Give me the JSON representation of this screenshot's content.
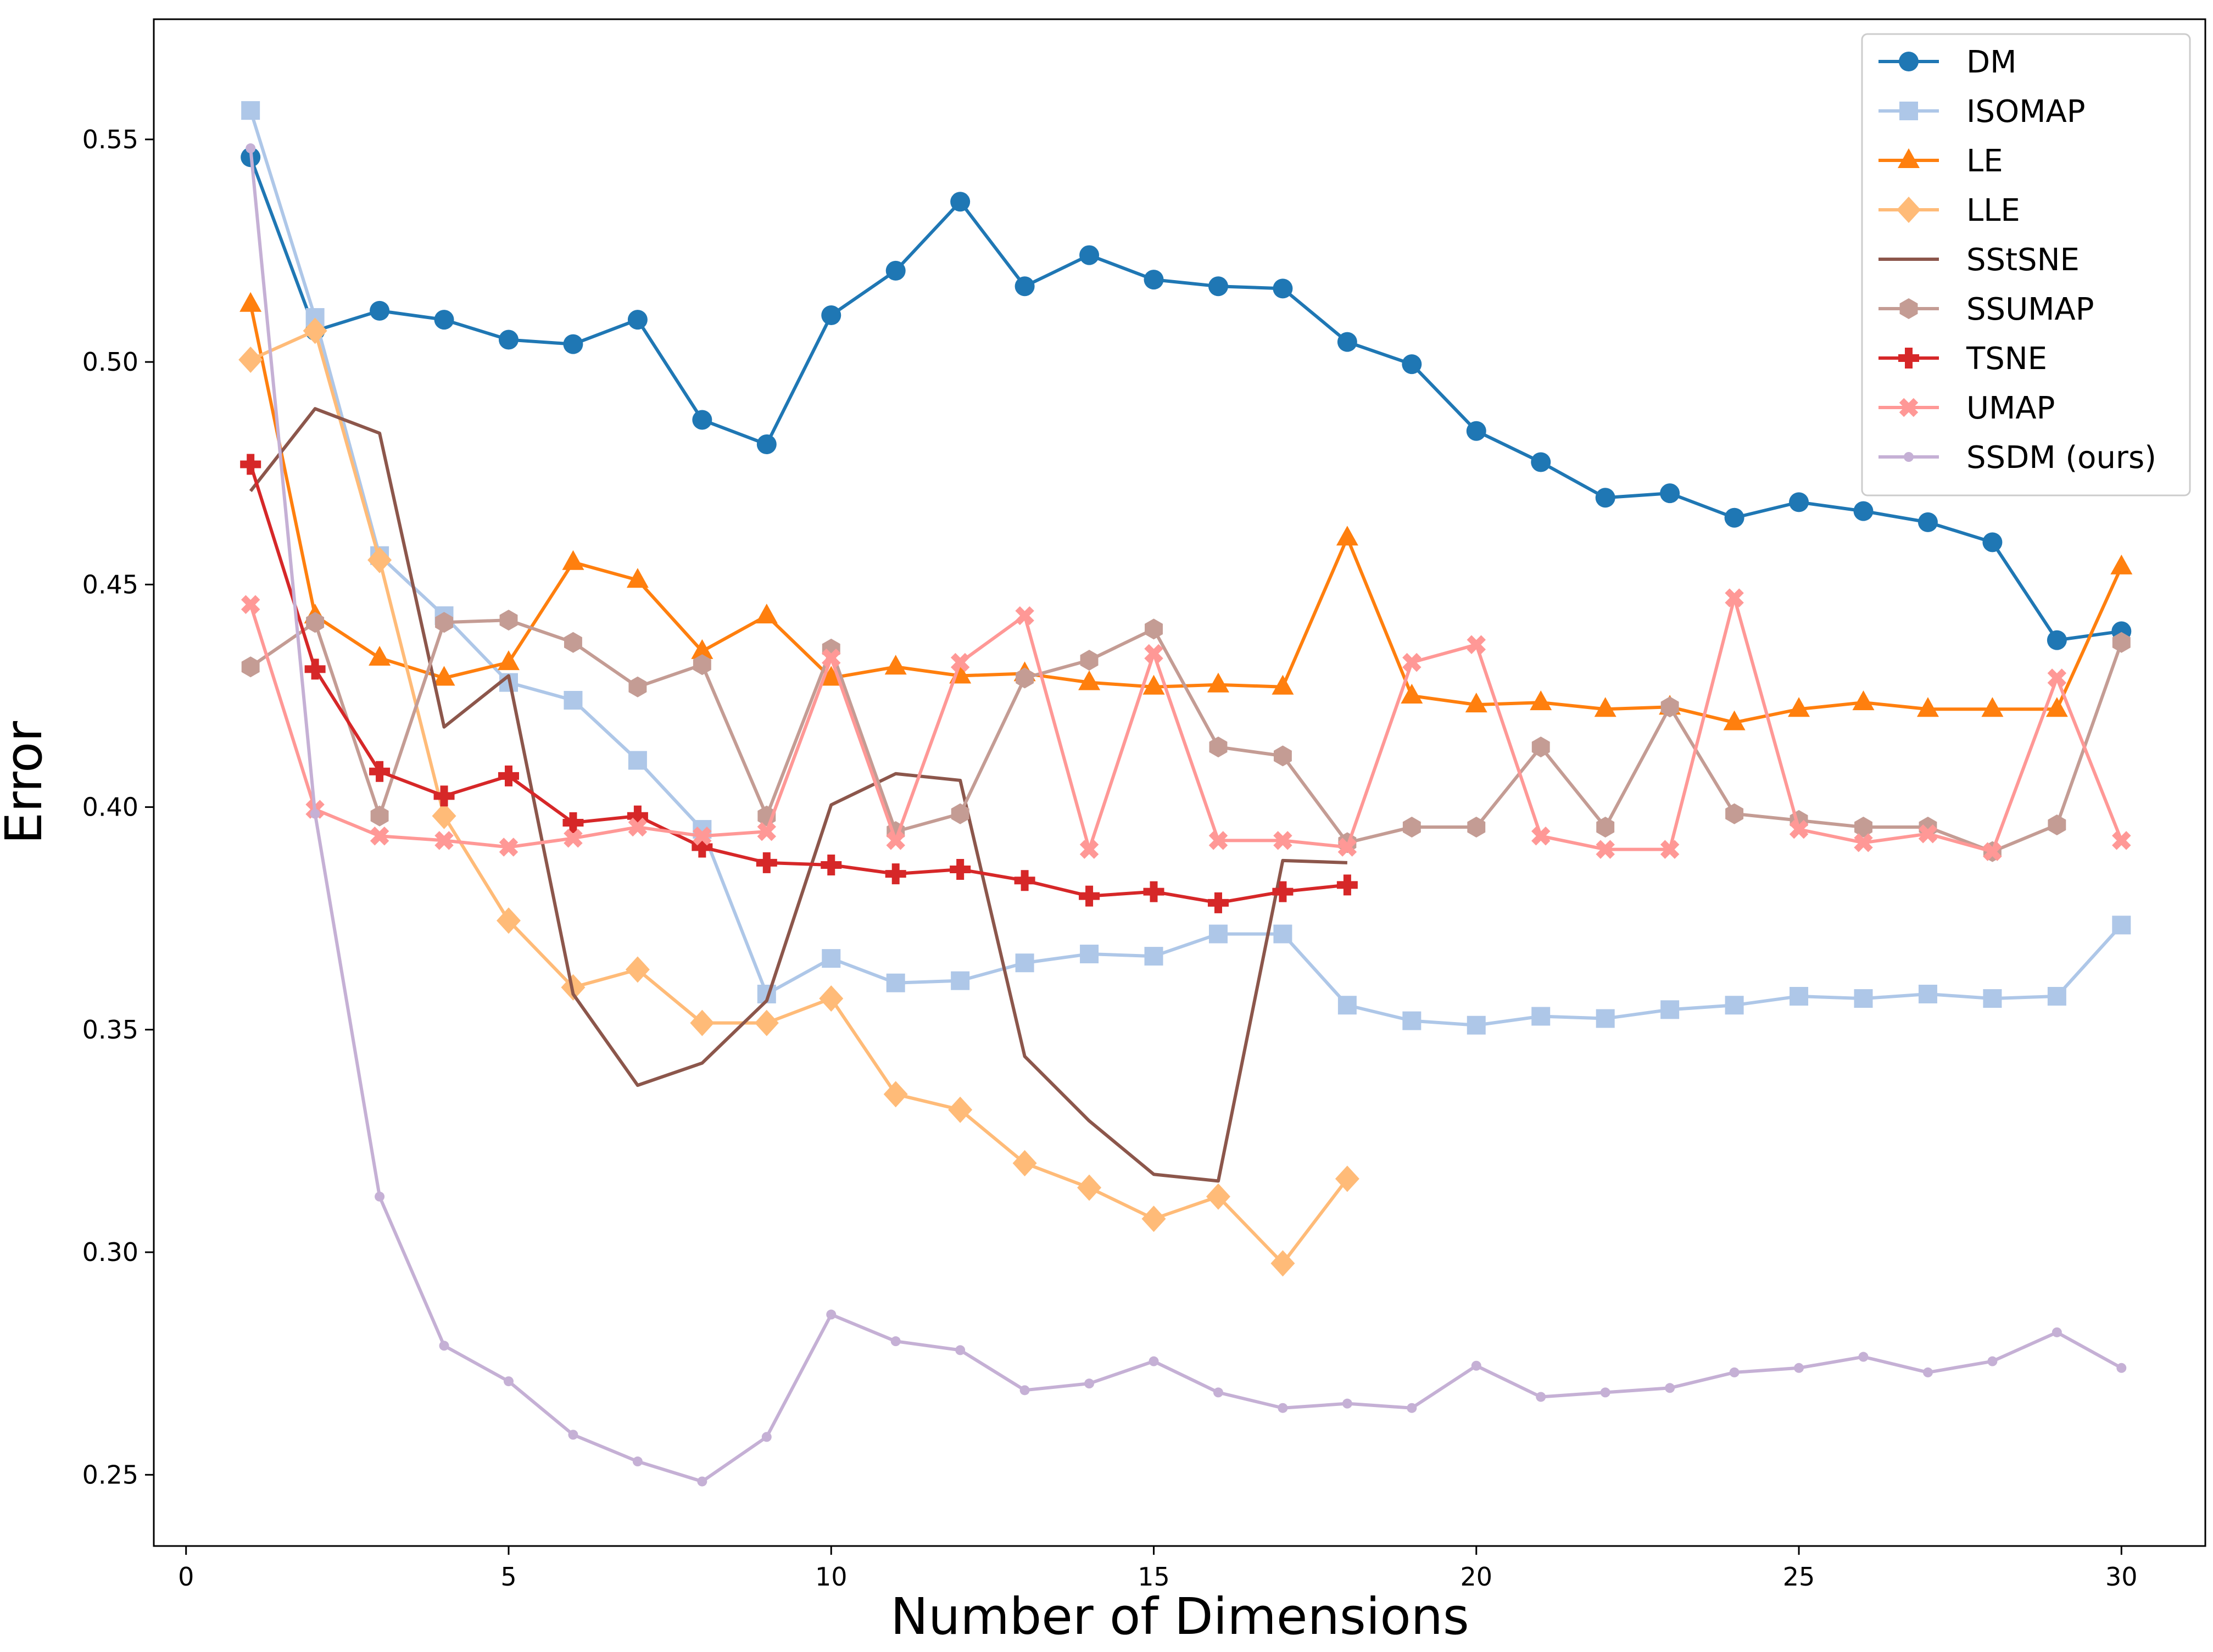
{
  "chart_data": {
    "type": "line",
    "title": "",
    "xlabel": "Number of Dimensions",
    "ylabel": "Error",
    "xlim": [
      -0.5,
      31.3
    ],
    "ylim": [
      0.234,
      0.577
    ],
    "xticks": [
      0,
      5,
      10,
      15,
      20,
      25,
      30
    ],
    "yticks": [
      0.25,
      0.3,
      0.35,
      0.4,
      0.45,
      0.5,
      0.55
    ],
    "ytick_labels": [
      "0.25",
      "0.30",
      "0.35",
      "0.40",
      "0.45",
      "0.50",
      "0.55"
    ],
    "grid": false,
    "legend_position": "top-right",
    "series": [
      {
        "name": "DM",
        "color": "#1f77b4",
        "marker": "circle",
        "x": [
          1,
          2,
          3,
          4,
          5,
          6,
          7,
          8,
          9,
          10,
          11,
          12,
          13,
          14,
          15,
          16,
          17,
          18,
          19,
          20,
          21,
          22,
          23,
          24,
          25,
          26,
          27,
          28,
          29,
          30
        ],
        "y": [
          0.546,
          0.507,
          0.5115,
          0.5095,
          0.505,
          0.504,
          0.5095,
          0.487,
          0.4815,
          0.5105,
          0.5205,
          0.536,
          0.517,
          0.524,
          0.5185,
          0.517,
          0.5165,
          0.5045,
          0.4995,
          0.4845,
          0.4775,
          0.4695,
          0.4705,
          0.465,
          0.4685,
          0.4665,
          0.464,
          0.4595,
          0.4375,
          0.4395
        ]
      },
      {
        "name": "ISOMAP",
        "color": "#aec7e8",
        "marker": "square",
        "x": [
          1,
          2,
          3,
          4,
          5,
          6,
          7,
          8,
          9,
          10,
          11,
          12,
          13,
          14,
          15,
          16,
          17,
          18,
          19,
          20,
          21,
          22,
          23,
          24,
          25,
          26,
          27,
          28,
          29,
          30
        ],
        "y": [
          0.5565,
          0.51,
          0.4565,
          0.443,
          0.428,
          0.424,
          0.4105,
          0.395,
          0.358,
          0.366,
          0.3605,
          0.361,
          0.365,
          0.367,
          0.3665,
          0.3715,
          0.3715,
          0.3555,
          0.352,
          0.351,
          0.353,
          0.3525,
          0.3545,
          0.3555,
          0.3575,
          0.357,
          0.358,
          0.357,
          0.3575,
          0.3735
        ]
      },
      {
        "name": "LE",
        "color": "#ff7f0e",
        "marker": "triangle",
        "x": [
          1,
          2,
          3,
          4,
          5,
          6,
          7,
          8,
          9,
          10,
          11,
          12,
          13,
          14,
          15,
          16,
          17,
          18,
          19,
          20,
          21,
          22,
          23,
          24,
          25,
          26,
          27,
          28,
          29,
          30
        ],
        "y": [
          0.513,
          0.443,
          0.4335,
          0.429,
          0.4325,
          0.455,
          0.451,
          0.435,
          0.443,
          0.429,
          0.4315,
          0.4295,
          0.43,
          0.428,
          0.427,
          0.4275,
          0.427,
          0.4605,
          0.425,
          0.423,
          0.4235,
          0.422,
          0.4225,
          0.419,
          0.422,
          0.4235,
          0.422,
          0.422,
          0.422,
          0.454
        ]
      },
      {
        "name": "LLE",
        "color": "#ffbb78",
        "marker": "diamond",
        "x": [
          1,
          2,
          3,
          4,
          5,
          6,
          7,
          8,
          9,
          10,
          11,
          12,
          13,
          14,
          15,
          16,
          17,
          18
        ],
        "y": [
          0.5005,
          0.507,
          0.4555,
          0.398,
          0.3745,
          0.3595,
          0.3635,
          0.3515,
          0.3515,
          0.357,
          0.3355,
          0.332,
          0.32,
          0.3145,
          0.3075,
          0.3125,
          0.2975,
          0.3165
        ]
      },
      {
        "name": "SStSNE",
        "color": "#8c564b",
        "marker": "none",
        "x": [
          1,
          2,
          3,
          4,
          5,
          6,
          7,
          8,
          9,
          10,
          11,
          12,
          13,
          14,
          15,
          16,
          17,
          18
        ],
        "y": [
          0.471,
          0.4895,
          0.484,
          0.418,
          0.4295,
          0.358,
          0.3375,
          0.3425,
          0.3565,
          0.4005,
          0.4075,
          0.406,
          0.344,
          0.3295,
          0.3175,
          0.316,
          0.388,
          0.3875
        ]
      },
      {
        "name": "SSUMAP",
        "color": "#c49c94",
        "marker": "hexagon",
        "x": [
          1,
          2,
          3,
          4,
          5,
          6,
          7,
          8,
          9,
          10,
          11,
          12,
          13,
          14,
          15,
          16,
          17,
          18,
          19,
          20,
          21,
          22,
          23,
          24,
          25,
          26,
          27,
          28,
          29,
          30
        ],
        "y": [
          0.4315,
          0.4415,
          0.398,
          0.4415,
          0.442,
          0.437,
          0.427,
          0.432,
          0.398,
          0.4355,
          0.3945,
          0.3985,
          0.429,
          0.433,
          0.44,
          0.4135,
          0.4115,
          0.392,
          0.3955,
          0.3955,
          0.4135,
          0.3955,
          0.4225,
          0.3985,
          0.397,
          0.3955,
          0.3955,
          0.39,
          0.396,
          0.437
        ]
      },
      {
        "name": "TSNE",
        "color": "#d62728",
        "marker": "plus",
        "x": [
          1,
          2,
          3,
          4,
          5,
          6,
          7,
          8,
          9,
          10,
          11,
          12,
          13,
          14,
          15,
          16,
          17,
          18
        ],
        "y": [
          0.477,
          0.431,
          0.408,
          0.4025,
          0.407,
          0.3965,
          0.398,
          0.391,
          0.3875,
          0.387,
          0.385,
          0.386,
          0.3835,
          0.38,
          0.381,
          0.3785,
          0.381,
          0.3825
        ]
      },
      {
        "name": "UMAP",
        "color": "#ff9896",
        "marker": "x",
        "x": [
          1,
          2,
          3,
          4,
          5,
          6,
          7,
          8,
          9,
          10,
          11,
          12,
          13,
          14,
          15,
          16,
          17,
          18,
          19,
          20,
          21,
          22,
          23,
          24,
          25,
          26,
          27,
          28,
          29,
          30
        ],
        "y": [
          0.4455,
          0.3995,
          0.3935,
          0.3925,
          0.391,
          0.393,
          0.3955,
          0.3935,
          0.3945,
          0.4335,
          0.3925,
          0.4325,
          0.443,
          0.3905,
          0.4345,
          0.3925,
          0.3925,
          0.391,
          0.4325,
          0.4365,
          0.3935,
          0.3905,
          0.3905,
          0.447,
          0.395,
          0.392,
          0.394,
          0.39,
          0.429,
          0.3925
        ]
      },
      {
        "name": "SSDM (ours)",
        "color": "#c5b0d5",
        "marker": "smallcircle",
        "x": [
          1,
          2,
          3,
          4,
          5,
          6,
          7,
          8,
          9,
          10,
          11,
          12,
          13,
          14,
          15,
          16,
          17,
          18,
          19,
          20,
          21,
          22,
          23,
          24,
          25,
          26,
          27,
          28,
          29,
          30
        ],
        "y": [
          0.548,
          0.3985,
          0.3125,
          0.279,
          0.271,
          0.259,
          0.253,
          0.2485,
          0.2585,
          0.286,
          0.28,
          0.278,
          0.269,
          0.2705,
          0.2755,
          0.2685,
          0.265,
          0.266,
          0.265,
          0.2745,
          0.2675,
          0.2685,
          0.2695,
          0.273,
          0.274,
          0.2765,
          0.273,
          0.2755,
          0.282,
          0.274
        ]
      }
    ]
  }
}
